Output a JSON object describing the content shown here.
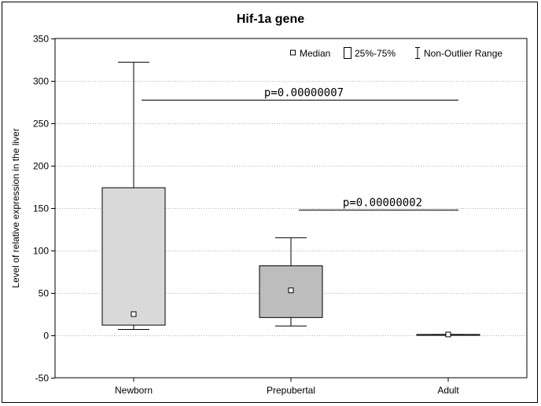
{
  "chart_data": {
    "type": "box",
    "title": "Hif-1a gene",
    "xlabel": "",
    "ylabel": "Level of relative expression in the liver",
    "ylim": [
      -50,
      350
    ],
    "yticks": [
      -50,
      0,
      50,
      100,
      150,
      200,
      250,
      300,
      350
    ],
    "grid": true,
    "legend_position": "top-right",
    "legend": {
      "median": "Median",
      "box": "25%-75%",
      "whisker": "Non-Outlier Range"
    },
    "categories": [
      "Newborn",
      "Prepubertal",
      "Adult"
    ],
    "boxes": [
      {
        "category": "Newborn",
        "whisker_low": 7,
        "q1": 12,
        "median": 25,
        "q3": 174,
        "whisker_high": 322,
        "fill": "#d9d9d9"
      },
      {
        "category": "Prepubertal",
        "whisker_low": 11,
        "q1": 21,
        "median": 53,
        "q3": 82,
        "whisker_high": 115,
        "fill": "#bdbdbd"
      },
      {
        "category": "Adult",
        "whisker_low": 0,
        "q1": 0,
        "median": 1,
        "q3": 1,
        "whisker_high": 1,
        "fill": "#ffffff"
      }
    ],
    "annotations": [
      {
        "text": "p=0.00000007",
        "from": "Newborn",
        "to": "Adult",
        "y": 278
      },
      {
        "text": "p=0.00000002",
        "from": "Prepubertal",
        "to": "Adult",
        "y": 148
      }
    ]
  }
}
